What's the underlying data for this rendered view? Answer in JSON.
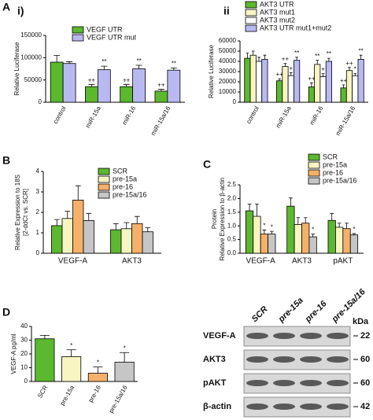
{
  "chart_data": [
    {
      "type": "bar",
      "panel": "A",
      "subpanel": "i)",
      "ylabel": [
        "Relative Luciferase"
      ],
      "categories": [
        "control",
        "miR-15a",
        "miR-16",
        "miR-15a/16"
      ],
      "ylim": [
        0,
        150000
      ],
      "yticks": [
        0,
        50000,
        100000,
        150000
      ],
      "series": [
        {
          "name": "VEGF UTR",
          "color": "#5cb82e",
          "values": [
            90000,
            35000,
            35000,
            25000
          ],
          "errors": [
            15000,
            5000,
            5000,
            4000
          ],
          "annotations": [
            null,
            "++",
            "++",
            "++"
          ]
        },
        {
          "name": "VEGF UTR mut",
          "color": "#b9b9f2",
          "values": [
            87000,
            73000,
            75000,
            72000
          ],
          "errors": [
            4000,
            8000,
            8000,
            5000
          ],
          "annotations": [
            null,
            "**",
            "**",
            "**"
          ]
        }
      ]
    },
    {
      "type": "bar",
      "subpanel": "ii",
      "ylabel": [
        "Relative Luciferase"
      ],
      "categories": [
        "control",
        "miR-15a",
        "miR-16",
        "miR-15a/16"
      ],
      "ylim": [
        0,
        60000
      ],
      "yticks": [
        0,
        10000,
        20000,
        30000,
        40000,
        50000,
        60000
      ],
      "series": [
        {
          "name": "AKT3 UTR",
          "color": "#5cb82e",
          "values": [
            43000,
            21000,
            15000,
            14000
          ],
          "errors": [
            5000,
            2000,
            4000,
            3000
          ],
          "annotations": [
            null,
            "++",
            "++",
            "++"
          ]
        },
        {
          "name": "AKT3 mut1",
          "color": "#f7f5c2",
          "values": [
            46000,
            35000,
            37000,
            31000
          ],
          "errors": [
            4000,
            3000,
            4000,
            3000
          ],
          "annotations": [
            null,
            "++",
            "**",
            "++"
          ]
        },
        {
          "name": "AKT3 mut2",
          "color": "#ffffff",
          "values": [
            40000,
            26000,
            25000,
            26000
          ],
          "errors": [
            4000,
            3000,
            3000,
            2000
          ],
          "annotations": [
            null,
            "+",
            "+",
            "*"
          ]
        },
        {
          "name": "AKT3 UTR mut1+mut2",
          "color": "#b9b9f2",
          "values": [
            42000,
            41000,
            40000,
            42000
          ],
          "errors": [
            4000,
            3000,
            3000,
            4000
          ],
          "annotations": [
            null,
            "**",
            "**",
            "**"
          ]
        }
      ]
    },
    {
      "type": "bar",
      "panel": "B",
      "ylabel": [
        "Relative Expression to 18S",
        "[2-ddCt vs. SCR]"
      ],
      "categories": [
        "VEGF-A",
        "AKT3"
      ],
      "ylim": [
        0,
        4
      ],
      "yticks": [
        0,
        1,
        2,
        3,
        4
      ],
      "series": [
        {
          "name": "SCR",
          "color": "#5cb82e",
          "values": [
            1.35,
            1.15
          ],
          "errors": [
            0.3,
            0.3
          ]
        },
        {
          "name": "pre-15a",
          "color": "#f7f5c2",
          "values": [
            1.7,
            1.2
          ],
          "errors": [
            0.35,
            0.3
          ]
        },
        {
          "name": "pre-16",
          "color": "#f5b06a",
          "values": [
            2.6,
            1.45
          ],
          "errors": [
            0.7,
            0.35
          ]
        },
        {
          "name": "pre-15a/16",
          "color": "#c6c6c6",
          "values": [
            1.6,
            1.05
          ],
          "errors": [
            0.35,
            0.2
          ]
        }
      ]
    },
    {
      "type": "bar",
      "panel": "C",
      "ylabel": [
        "Protein",
        "Relative Expression to β-actin"
      ],
      "categories": [
        "VEGF-A",
        "AKT3",
        "pAKT"
      ],
      "ylim": [
        0,
        2.5
      ],
      "yticks": [
        {
          "value": 0,
          "label": "0.0"
        },
        0.5,
        {
          "value": 1,
          "label": "1.0"
        },
        1.5,
        {
          "value": 2,
          "label": "2.0"
        },
        2.5
      ],
      "series": [
        {
          "name": "SCR",
          "color": "#5cb82e",
          "values": [
            1.55,
            1.72,
            1.2
          ],
          "errors": [
            0.25,
            0.3,
            0.25
          ],
          "annotations": [
            null,
            null,
            null
          ]
        },
        {
          "name": "pre-15a",
          "color": "#f7f5c2",
          "values": [
            1.35,
            1.05,
            0.95
          ],
          "errors": [
            0.45,
            0.25,
            0.15
          ],
          "annotations": [
            null,
            null,
            null
          ]
        },
        {
          "name": "pre-16",
          "color": "#f5b06a",
          "values": [
            0.7,
            1.1,
            0.9
          ],
          "errors": [
            0.15,
            0.2,
            0.2
          ],
          "annotations": [
            "*",
            null,
            null
          ]
        },
        {
          "name": "pre-15a/16",
          "color": "#c6c6c6",
          "values": [
            0.7,
            0.6,
            0.67
          ],
          "errors": [
            0.1,
            0.1,
            0.05
          ],
          "annotations": [
            "*",
            "*",
            "*"
          ]
        }
      ]
    },
    {
      "type": "bar",
      "panel": "D",
      "ylabel": [
        "VEGF-A pg/ml"
      ],
      "categories": [
        "SCR",
        "pre-15a",
        "pre-16",
        "pre-15a/16"
      ],
      "ylim": [
        0,
        40
      ],
      "yticks": [
        0,
        10,
        20,
        30,
        40
      ],
      "series": [
        {
          "colors": [
            "#5cb82e",
            "#f7f5c2",
            "#f5b06a",
            "#c6c6c6"
          ],
          "values": [
            31,
            18,
            6,
            14
          ],
          "errors": [
            2.5,
            5,
            4.5,
            7
          ],
          "annotations": [
            null,
            "*",
            "*",
            "*"
          ]
        }
      ]
    }
  ],
  "blot": {
    "columns": [
      "SCR",
      "pre-15a",
      "pre-16",
      "pre-15a/16"
    ],
    "rows": [
      "VEGF-A",
      "AKT3",
      "pAKT",
      "β-actin"
    ],
    "unit": "kDa",
    "sizes": [
      "22",
      "60",
      "60",
      "42"
    ]
  }
}
